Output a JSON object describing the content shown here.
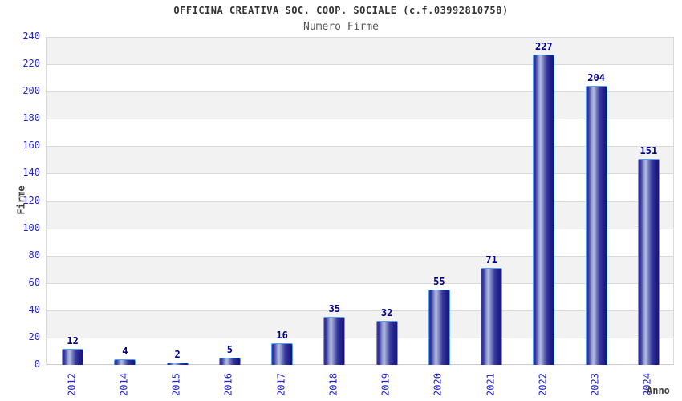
{
  "chart_data": {
    "type": "bar",
    "title": "OFFICINA CREATIVA SOC. COOP. SOCIALE (c.f.03992810758)",
    "subtitle": "Numero Firme",
    "xlabel": "Anno",
    "ylabel": "Firme",
    "categories": [
      "2012",
      "2014",
      "2015",
      "2016",
      "2017",
      "2018",
      "2019",
      "2020",
      "2021",
      "2022",
      "2023",
      "2024"
    ],
    "values": [
      12,
      4,
      2,
      5,
      16,
      35,
      32,
      55,
      71,
      227,
      204,
      151
    ],
    "ylim": [
      0,
      240
    ],
    "ytick_step": 20,
    "legend": "none",
    "grid": "horizontal-bands-alternating",
    "colors": {
      "tick_label": "#2222cc",
      "value_label": "#00008b",
      "bar_border": "#55a0ee",
      "bar_gradient_dark": "#15157d",
      "bar_gradient_mid": "#3b3ba3",
      "bar_gradient_light": "#b2bce2",
      "band_gray": "#f2f2f2",
      "band_white": "#ffffff",
      "gridline": "#d9d9d9",
      "title": "#333333",
      "subtitle": "#555555",
      "axis_title": "#404040"
    }
  }
}
